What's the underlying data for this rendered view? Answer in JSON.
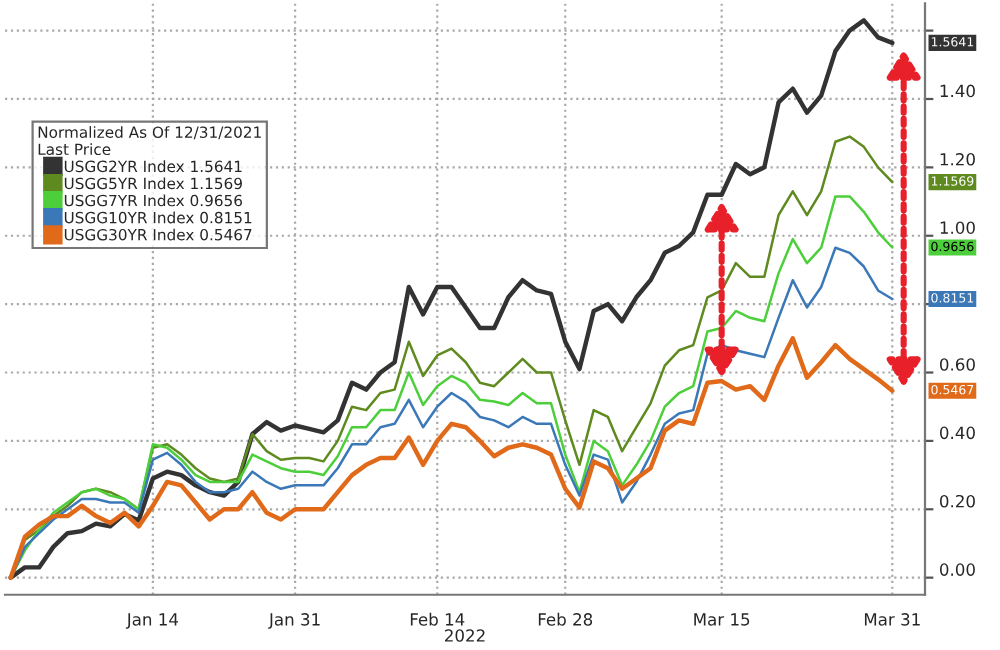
{
  "chart_data": {
    "type": "line",
    "xlabel": "2022",
    "legend_title": "Normalized As Of 12/31/2021\nLast Price",
    "categories": [
      null,
      null,
      null,
      null,
      null,
      null,
      null,
      null,
      null,
      null,
      "Jan 14",
      null,
      null,
      null,
      null,
      null,
      null,
      null,
      null,
      null,
      "Jan 31",
      null,
      null,
      null,
      null,
      null,
      null,
      null,
      null,
      null,
      "Feb 14",
      null,
      null,
      null,
      null,
      null,
      null,
      null,
      null,
      "Feb 28",
      null,
      null,
      null,
      null,
      null,
      null,
      null,
      null,
      null,
      null,
      "Mar 15",
      null,
      null,
      null,
      null,
      null,
      null,
      null,
      null,
      null,
      null,
      null,
      "Mar 31"
    ],
    "ylim": [
      -0.05,
      1.68
    ],
    "yticks": [
      {
        "value": 0,
        "label": "0.00"
      },
      {
        "value": 0.2,
        "label": "0.20"
      },
      {
        "value": 0.4,
        "label": "0.40"
      },
      {
        "value": 0.6,
        "label": "0.60"
      },
      {
        "value": 0.8,
        "label": null
      },
      {
        "value": 1.0,
        "label": "1.00"
      },
      {
        "value": 1.2,
        "label": "1.20"
      },
      {
        "value": 1.4,
        "label": "1.40"
      },
      {
        "value": 1.6,
        "label": null
      }
    ],
    "grid": true,
    "legend": "top left",
    "marker": "none",
    "line_style": "solid",
    "series": [
      {
        "name": "USGG2YR Index 1.5641",
        "color": "#333333",
        "values": [
          0,
          0.03,
          0.03,
          0.09,
          0.13,
          0.136,
          0.158,
          0.15,
          0.186,
          0.167,
          0.29,
          0.31,
          0.3,
          0.27,
          0.25,
          0.24,
          0.28,
          0.42,
          0.455,
          0.43,
          0.445,
          0.435,
          0.425,
          0.46,
          0.57,
          0.55,
          0.6,
          0.63,
          0.85,
          0.77,
          0.85,
          0.85,
          0.79,
          0.73,
          0.73,
          0.82,
          0.87,
          0.84,
          0.83,
          0.69,
          0.61,
          0.78,
          0.8,
          0.75,
          0.82,
          0.87,
          0.95,
          0.97,
          1.01,
          1.12,
          1.12,
          1.21,
          1.18,
          1.2,
          1.39,
          1.43,
          1.36,
          1.41,
          1.54,
          1.6,
          1.63,
          1.58,
          1.5641
        ]
      },
      {
        "name": "USGG5YR Index 1.1569",
        "color": "#5f8a1f",
        "values": [
          0,
          0.11,
          0.14,
          0.18,
          0.21,
          0.25,
          0.26,
          0.25,
          0.23,
          0.2,
          0.38,
          0.39,
          0.36,
          0.32,
          0.29,
          0.28,
          0.29,
          0.42,
          0.37,
          0.345,
          0.35,
          0.35,
          0.34,
          0.4,
          0.5,
          0.49,
          0.54,
          0.55,
          0.69,
          0.59,
          0.65,
          0.67,
          0.63,
          0.57,
          0.56,
          0.6,
          0.64,
          0.6,
          0.6,
          0.46,
          0.33,
          0.49,
          0.47,
          0.37,
          0.44,
          0.51,
          0.62,
          0.665,
          0.68,
          0.82,
          0.84,
          0.92,
          0.88,
          0.88,
          1.06,
          1.13,
          1.06,
          1.13,
          1.275,
          1.29,
          1.26,
          1.2,
          1.1569
        ]
      },
      {
        "name": "USGG7YR Index 0.9656",
        "color": "#4ccf3a",
        "values": [
          0,
          0.08,
          0.14,
          0.19,
          0.22,
          0.25,
          0.26,
          0.24,
          0.23,
          0.2,
          0.39,
          0.38,
          0.345,
          0.3,
          0.28,
          0.28,
          0.28,
          0.36,
          0.34,
          0.32,
          0.31,
          0.31,
          0.3,
          0.355,
          0.44,
          0.44,
          0.49,
          0.49,
          0.6,
          0.505,
          0.56,
          0.59,
          0.57,
          0.52,
          0.515,
          0.505,
          0.54,
          0.51,
          0.51,
          0.36,
          0.25,
          0.4,
          0.37,
          0.27,
          0.33,
          0.4,
          0.5,
          0.54,
          0.56,
          0.72,
          0.73,
          0.78,
          0.76,
          0.75,
          0.89,
          0.99,
          0.92,
          0.965,
          1.115,
          1.115,
          1.07,
          1.01,
          0.9656
        ]
      },
      {
        "name": "USGG10YR Index 0.8151",
        "color": "#3a78b8",
        "values": [
          0,
          0.09,
          0.13,
          0.17,
          0.2,
          0.23,
          0.23,
          0.22,
          0.22,
          0.19,
          0.345,
          0.365,
          0.33,
          0.28,
          0.25,
          0.25,
          0.26,
          0.31,
          0.28,
          0.26,
          0.27,
          0.27,
          0.27,
          0.32,
          0.39,
          0.39,
          0.44,
          0.45,
          0.52,
          0.44,
          0.5,
          0.54,
          0.515,
          0.47,
          0.46,
          0.44,
          0.47,
          0.45,
          0.45,
          0.33,
          0.24,
          0.36,
          0.345,
          0.22,
          0.28,
          0.36,
          0.45,
          0.48,
          0.49,
          0.655,
          0.68,
          0.665,
          0.655,
          0.645,
          0.76,
          0.87,
          0.79,
          0.85,
          0.965,
          0.95,
          0.91,
          0.84,
          0.8151
        ]
      },
      {
        "name": "USGG30YR Index 0.5467",
        "color": "#e06a1a",
        "values": [
          0,
          0.12,
          0.155,
          0.18,
          0.18,
          0.21,
          0.18,
          0.16,
          0.19,
          0.15,
          0.21,
          0.28,
          0.27,
          0.22,
          0.17,
          0.2,
          0.2,
          0.25,
          0.19,
          0.17,
          0.2,
          0.2,
          0.2,
          0.25,
          0.3,
          0.33,
          0.35,
          0.35,
          0.41,
          0.33,
          0.4,
          0.45,
          0.44,
          0.4,
          0.355,
          0.38,
          0.39,
          0.38,
          0.36,
          0.26,
          0.205,
          0.34,
          0.32,
          0.26,
          0.29,
          0.32,
          0.43,
          0.46,
          0.45,
          0.57,
          0.575,
          0.55,
          0.56,
          0.52,
          0.62,
          0.7,
          0.585,
          0.63,
          0.68,
          0.64,
          0.61,
          0.58,
          0.5467
        ]
      }
    ],
    "annotations": [
      "1.5641",
      "1.1569",
      "0.9656",
      "0.8151",
      "0.5467"
    ]
  }
}
